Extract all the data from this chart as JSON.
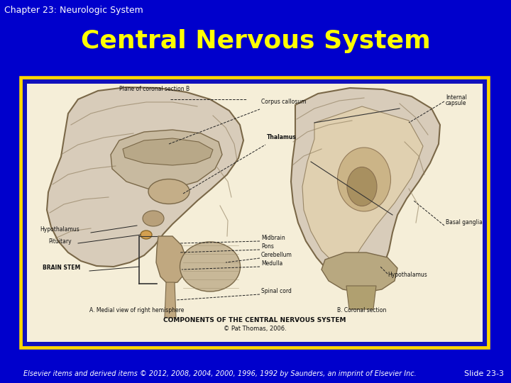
{
  "background_color": "#0000CC",
  "chapter_text": "Chapter 23: Neurologic System",
  "chapter_fontsize": 9,
  "chapter_color": "#FFFFFF",
  "title_text": "Central Nervous System",
  "title_fontsize": 26,
  "title_color": "#FFFF00",
  "title_bold": true,
  "footer_text": "Elsevier items and derived items © 2012, 2008, 2004, 2000, 1996, 1992 by Saunders, an imprint of Elsevier Inc.",
  "footer_color": "#FFFFFF",
  "footer_fontsize": 7,
  "slide_text": "Slide 23-3",
  "slide_fontsize": 8,
  "slide_color": "#FFFFFF",
  "image_border_outer_color": "#FFD700",
  "image_border_inner_color": "#1111BB",
  "image_bg_color": "#F5EED8"
}
